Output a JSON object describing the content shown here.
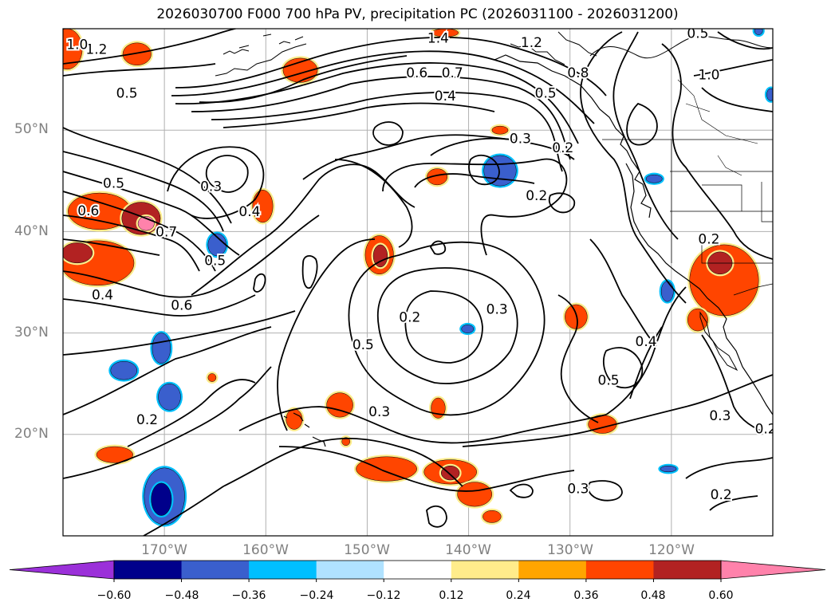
{
  "header": {
    "title": "2026030700 F000 700 hPa PV, precipitation PC (2026031100 - 2026031200)"
  },
  "axes": {
    "lat_labels": [
      "50°N",
      "40°N",
      "30°N",
      "20°N"
    ],
    "lat_values": [
      50,
      40,
      30,
      20
    ],
    "lon_labels": [
      "170°W",
      "160°W",
      "150°W",
      "140°W",
      "130°W",
      "120°W"
    ],
    "lon_values": [
      -170,
      -160,
      -150,
      -140,
      -130,
      -120
    ],
    "lat_range": [
      10,
      60
    ],
    "lon_range": [
      -180,
      -110
    ]
  },
  "colorbar": {
    "colors": [
      "#9b30d9",
      "#00008b",
      "#3a5fcd",
      "#00bfff",
      "#b0e2ff",
      "#ffffff",
      "#ffec8b",
      "#ffa500",
      "#ff4500",
      "#b22222",
      "#ff82ab"
    ],
    "tick_labels": [
      "−0.60",
      "−0.48",
      "−0.36",
      "−0.24",
      "−0.12",
      "0.12",
      "0.24",
      "0.36",
      "0.48",
      "0.60"
    ]
  },
  "contour_labels": [
    {
      "text": "1.2",
      "lon": -176.7,
      "lat": 57.9
    },
    {
      "text": "1.0",
      "lon": -178.6,
      "lat": 58.4
    },
    {
      "text": "1.4",
      "lon": -143.0,
      "lat": 59.0
    },
    {
      "text": "1.2",
      "lon": -133.8,
      "lat": 58.6
    },
    {
      "text": "0.6",
      "lon": -145.1,
      "lat": 55.6
    },
    {
      "text": "0.7",
      "lon": -141.6,
      "lat": 55.6
    },
    {
      "text": "0.8",
      "lon": -129.2,
      "lat": 55.6
    },
    {
      "text": "1.0",
      "lon": -116.3,
      "lat": 55.4
    },
    {
      "text": "0.5",
      "lon": -117.4,
      "lat": 59.5
    },
    {
      "text": "0.5",
      "lon": -173.7,
      "lat": 53.6
    },
    {
      "text": "0.4",
      "lon": -142.3,
      "lat": 53.3
    },
    {
      "text": "0.5",
      "lon": -132.4,
      "lat": 53.6
    },
    {
      "text": "0.3",
      "lon": -134.9,
      "lat": 49.1
    },
    {
      "text": "0.2",
      "lon": -130.7,
      "lat": 48.2
    },
    {
      "text": "0.5",
      "lon": -175.0,
      "lat": 44.7
    },
    {
      "text": "0.3",
      "lon": -165.4,
      "lat": 44.4
    },
    {
      "text": "0.2",
      "lon": -133.3,
      "lat": 43.5
    },
    {
      "text": "0.6",
      "lon": -177.5,
      "lat": 42.0
    },
    {
      "text": "0.7",
      "lon": -169.8,
      "lat": 39.9
    },
    {
      "text": "0.4",
      "lon": -161.6,
      "lat": 41.9
    },
    {
      "text": "0.5",
      "lon": -165.0,
      "lat": 37.1
    },
    {
      "text": "0.2",
      "lon": -116.3,
      "lat": 39.2
    },
    {
      "text": "0.4",
      "lon": -176.1,
      "lat": 33.7
    },
    {
      "text": "0.6",
      "lon": -168.3,
      "lat": 32.7
    },
    {
      "text": "0.3",
      "lon": -137.2,
      "lat": 32.3
    },
    {
      "text": "0.2",
      "lon": -145.8,
      "lat": 31.5
    },
    {
      "text": "0.4",
      "lon": -122.5,
      "lat": 29.1
    },
    {
      "text": "0.5",
      "lon": -150.4,
      "lat": 28.8
    },
    {
      "text": "0.5",
      "lon": -126.2,
      "lat": 25.3
    },
    {
      "text": "0.3",
      "lon": -148.8,
      "lat": 22.2
    },
    {
      "text": "0.3",
      "lon": -115.2,
      "lat": 21.8
    },
    {
      "text": "0.2",
      "lon": -171.7,
      "lat": 21.4
    },
    {
      "text": "0.2",
      "lon": -110.7,
      "lat": 20.5
    },
    {
      "text": "0.3",
      "lon": -129.2,
      "lat": 14.6
    },
    {
      "text": "0.2",
      "lon": -115.1,
      "lat": 14.0
    }
  ],
  "precip_blobs": [
    {
      "color": "#ff4500",
      "lon": -179.6,
      "lat": 58.0,
      "rlon": 1.5,
      "rlat": 2.0
    },
    {
      "color": "#ff4500",
      "lon": -172.7,
      "lat": 57.5,
      "rlon": 1.4,
      "rlat": 1.1
    },
    {
      "color": "#ff4500",
      "lon": -156.6,
      "lat": 55.9,
      "rlon": 1.7,
      "rlat": 1.2
    },
    {
      "color": "#ff4500",
      "lon": -142.3,
      "lat": 59.6,
      "rlon": 1.3,
      "rlat": 0.4
    },
    {
      "color": "#ff4500",
      "lon": -176.4,
      "lat": 42.0,
      "rlon": 3.1,
      "rlat": 1.8
    },
    {
      "color": "#b22222",
      "lon": -172.3,
      "lat": 41.3,
      "rlon": 1.9,
      "rlat": 1.6
    },
    {
      "color": "#ff82ab",
      "lon": -171.8,
      "lat": 40.8,
      "rlon": 0.8,
      "rlat": 0.7
    },
    {
      "color": "#ff4500",
      "lon": -176.6,
      "lat": 36.9,
      "rlon": 3.6,
      "rlat": 2.2
    },
    {
      "color": "#b22222",
      "lon": -178.6,
      "lat": 37.9,
      "rlon": 1.5,
      "rlat": 1.0
    },
    {
      "color": "#ff4500",
      "lon": -160.3,
      "lat": 42.5,
      "rlon": 1.0,
      "rlat": 1.6
    },
    {
      "color": "#ff4500",
      "lon": -148.8,
      "lat": 37.7,
      "rlon": 1.4,
      "rlat": 1.9
    },
    {
      "color": "#b22222",
      "lon": -148.7,
      "lat": 37.6,
      "rlon": 0.7,
      "rlat": 1.1
    },
    {
      "color": "#ff4500",
      "lon": -143.1,
      "lat": 45.4,
      "rlon": 1.0,
      "rlat": 0.8
    },
    {
      "color": "#ff4500",
      "lon": -129.4,
      "lat": 31.6,
      "rlon": 1.1,
      "rlat": 1.2
    },
    {
      "color": "#ff4500",
      "lon": -114.8,
      "lat": 35.2,
      "rlon": 3.4,
      "rlat": 3.5
    },
    {
      "color": "#b22222",
      "lon": -115.2,
      "lat": 36.9,
      "rlon": 1.2,
      "rlat": 1.1
    },
    {
      "color": "#ff4500",
      "lon": -117.4,
      "lat": 31.3,
      "rlon": 1.0,
      "rlat": 1.1
    },
    {
      "color": "#ff4500",
      "lon": -152.7,
      "lat": 22.9,
      "rlon": 1.3,
      "rlat": 1.2
    },
    {
      "color": "#ff4500",
      "lon": -157.2,
      "lat": 21.5,
      "rlon": 0.8,
      "rlat": 1.0
    },
    {
      "color": "#ff4500",
      "lon": -143.0,
      "lat": 22.6,
      "rlon": 0.7,
      "rlat": 1.0
    },
    {
      "color": "#ff4500",
      "lon": -126.8,
      "lat": 21.0,
      "rlon": 1.4,
      "rlat": 0.9
    },
    {
      "color": "#ff4500",
      "lon": -174.9,
      "lat": 18.0,
      "rlon": 1.8,
      "rlat": 0.8
    },
    {
      "color": "#ff4500",
      "lon": -148.1,
      "lat": 16.6,
      "rlon": 3.0,
      "rlat": 1.2
    },
    {
      "color": "#ff4500",
      "lon": -141.8,
      "lat": 16.3,
      "rlon": 2.6,
      "rlat": 1.2
    },
    {
      "color": "#b22222",
      "lon": -141.8,
      "lat": 16.2,
      "rlon": 0.9,
      "rlat": 0.7
    },
    {
      "color": "#ff4500",
      "lon": -139.4,
      "lat": 14.1,
      "rlon": 1.7,
      "rlat": 1.2
    },
    {
      "color": "#ff4500",
      "lon": -137.7,
      "lat": 11.9,
      "rlon": 0.9,
      "rlat": 0.6
    },
    {
      "color": "#ff4500",
      "lon": -165.3,
      "lat": 25.6,
      "rlon": 0.4,
      "rlat": 0.4
    },
    {
      "color": "#ff4500",
      "lon": -152.1,
      "lat": 19.3,
      "rlon": 0.4,
      "rlat": 0.4
    },
    {
      "color": "#ff4500",
      "lon": -136.9,
      "lat": 50.0,
      "rlon": 0.8,
      "rlat": 0.4
    },
    {
      "color": "#3a5fcd",
      "lon": -136.9,
      "lat": 46.0,
      "rlon": 1.6,
      "rlat": 1.5
    },
    {
      "color": "#3a5fcd",
      "lon": -164.8,
      "lat": 38.7,
      "rlon": 0.9,
      "rlat": 1.1
    },
    {
      "color": "#3a5fcd",
      "lon": -120.4,
      "lat": 34.1,
      "rlon": 0.6,
      "rlat": 1.0
    },
    {
      "color": "#3a5fcd",
      "lon": -170.3,
      "lat": 28.5,
      "rlon": 0.9,
      "rlat": 1.5
    },
    {
      "color": "#3a5fcd",
      "lon": -174.0,
      "lat": 26.3,
      "rlon": 1.3,
      "rlat": 0.9
    },
    {
      "color": "#3a5fcd",
      "lon": -169.5,
      "lat": 23.7,
      "rlon": 1.1,
      "rlat": 1.3
    },
    {
      "color": "#3a5fcd",
      "lon": -170.0,
      "lat": 13.9,
      "rlon": 2.0,
      "rlat": 2.8
    },
    {
      "color": "#00008b",
      "lon": -170.3,
      "lat": 13.6,
      "rlon": 1.0,
      "rlat": 1.6
    },
    {
      "color": "#3a5fcd",
      "lon": -140.1,
      "lat": 30.4,
      "rlon": 0.6,
      "rlat": 0.4
    },
    {
      "color": "#3a5fcd",
      "lon": -120.3,
      "lat": 16.6,
      "rlon": 0.8,
      "rlat": 0.3
    },
    {
      "color": "#3a5fcd",
      "lon": -111.4,
      "lat": 59.8,
      "rlon": 0.4,
      "rlat": 0.4
    },
    {
      "color": "#3a5fcd",
      "lon": -110.2,
      "lat": 53.5,
      "rlon": 0.4,
      "rlat": 0.6
    },
    {
      "color": "#3a5fcd",
      "lon": -121.7,
      "lat": 45.2,
      "rlon": 0.8,
      "rlat": 0.4
    }
  ]
}
